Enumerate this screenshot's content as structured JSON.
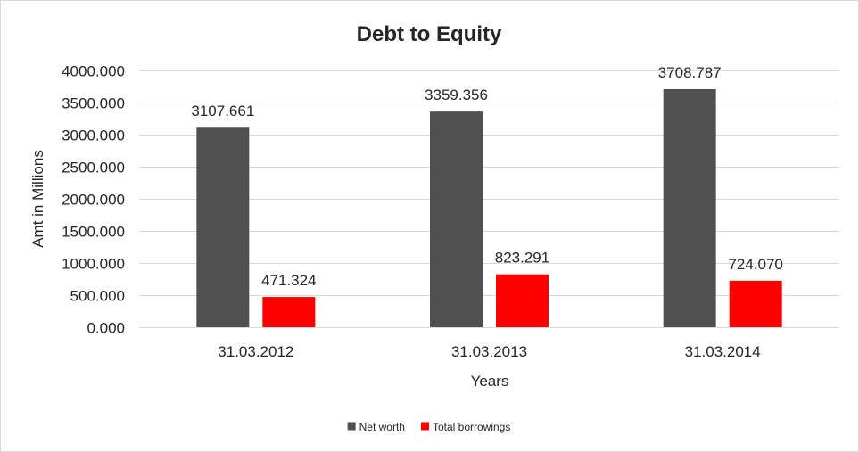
{
  "chart_data": {
    "type": "bar",
    "title": "Debt to Equity",
    "xlabel": "Years",
    "ylabel": "Amt in Millions",
    "categories": [
      "31.03.2012",
      "31.03.2013",
      "31.03.2014"
    ],
    "series": [
      {
        "name": "Net worth",
        "color": "#505050",
        "values": [
          3107.661,
          3359.356,
          3708.787
        ],
        "labels": [
          "3107.661",
          "3359.356",
          "3708.787"
        ]
      },
      {
        "name": "Total borrowings",
        "color": "#ff0000",
        "values": [
          471.324,
          823.291,
          724.07
        ],
        "labels": [
          "471.324",
          "823.291",
          "724.070"
        ]
      }
    ],
    "ylim": [
      0,
      4000
    ],
    "yticks": [
      0,
      500,
      1000,
      1500,
      2000,
      2500,
      3000,
      3500,
      4000
    ],
    "ytick_labels": [
      "0.000",
      "500.000",
      "1000.000",
      "1500.000",
      "2000.000",
      "2500.000",
      "3000.000",
      "3500.000",
      "4000.000"
    ],
    "grid": true,
    "legend_position": "bottom"
  }
}
